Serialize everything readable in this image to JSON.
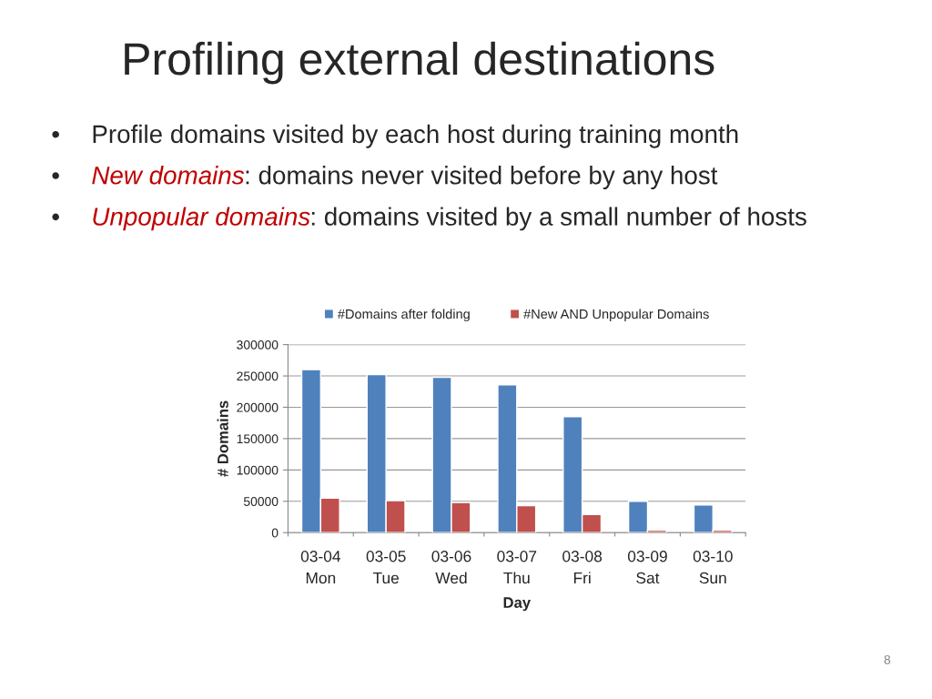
{
  "chart_data": {
    "type": "bar",
    "title": "Profiling external destinations",
    "annotations": [
      "• Profile domains visited by each host during training month",
      "• New domains: domains never visited before by any host",
      "• Unpopular domains: domains visited by a small number of hosts",
      "8"
    ],
    "xlabel": "Day",
    "ylabel": "# Domains",
    "categories": [
      "03-04\nMon",
      "03-05\nTue",
      "03-06\nWed",
      "03-07\nThu",
      "03-08\nFri",
      "03-09\nSat",
      "03-10\nSun"
    ],
    "series": [
      {
        "name": "#Domains after folding",
        "color": "#4f81bd",
        "values": [
          260000,
          252000,
          248000,
          236000,
          185000,
          50000,
          44000
        ]
      },
      {
        "name": "#New AND Unpopular Domains",
        "color": "#c0504d",
        "values": [
          55000,
          51000,
          48000,
          43000,
          29000,
          4000,
          4000
        ]
      }
    ],
    "ylim": [
      0,
      300000
    ],
    "yticks": [
      0,
      50000,
      100000,
      150000,
      200000,
      250000,
      300000
    ],
    "grid": "y",
    "legend": "top"
  }
}
